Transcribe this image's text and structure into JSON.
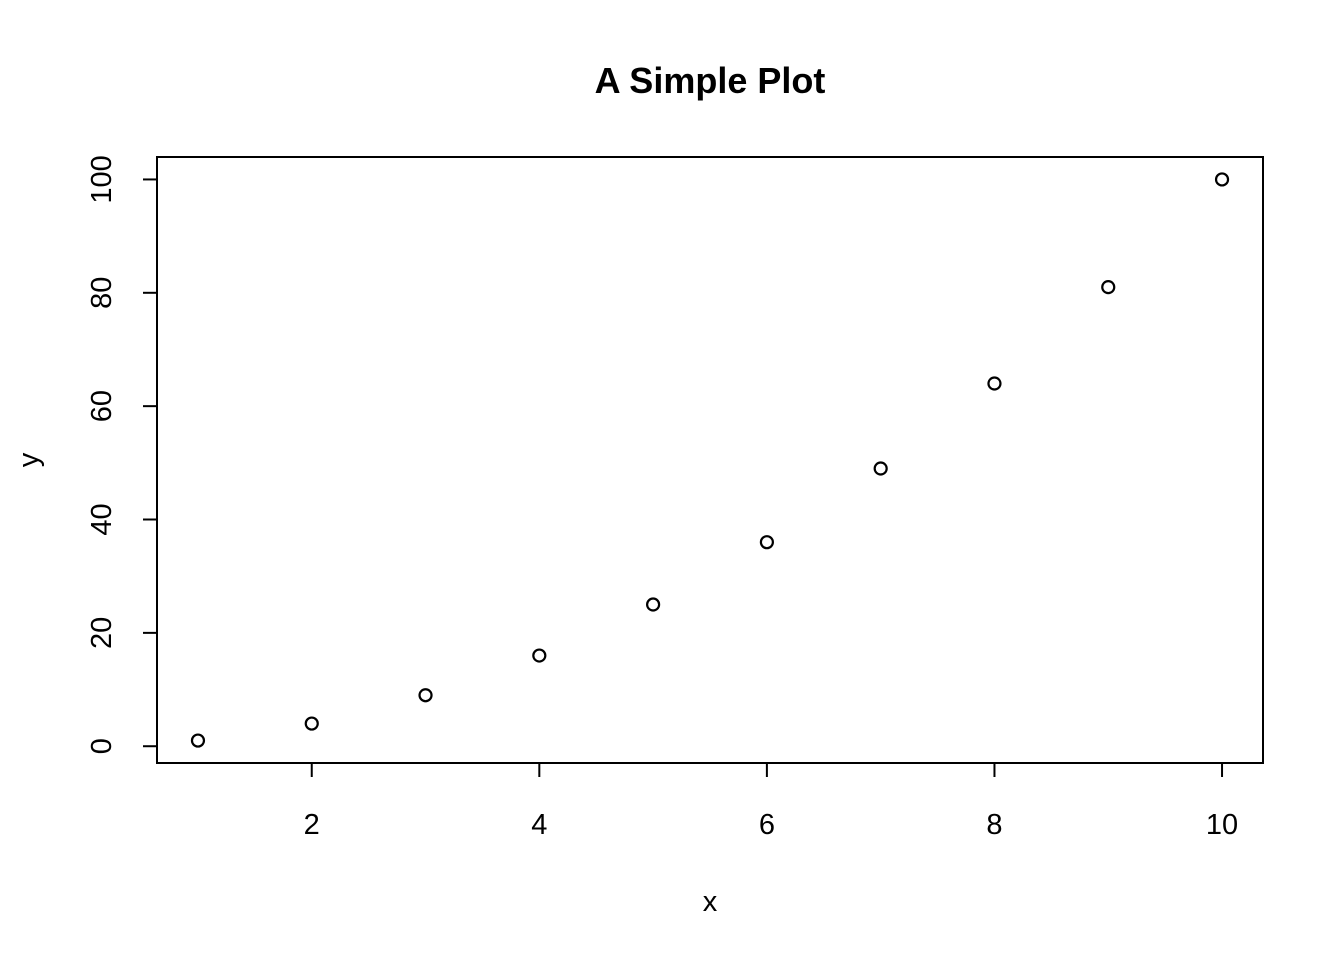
{
  "chart_data": {
    "type": "scatter",
    "title": "A Simple Plot",
    "xlabel": "x",
    "ylabel": "y",
    "x": [
      1,
      2,
      3,
      4,
      5,
      6,
      7,
      8,
      9,
      10
    ],
    "y": [
      1,
      4,
      9,
      16,
      25,
      36,
      49,
      64,
      81,
      100
    ],
    "xlim": [
      0.64,
      10.36
    ],
    "ylim": [
      -2.96,
      103.96
    ],
    "xticks": [
      2,
      4,
      6,
      8,
      10
    ],
    "yticks": [
      0,
      20,
      40,
      60,
      80,
      100
    ],
    "grid": false,
    "marker": "open-circle",
    "colors": {
      "point": "#000000",
      "axis": "#000000",
      "background": "#ffffff"
    }
  }
}
